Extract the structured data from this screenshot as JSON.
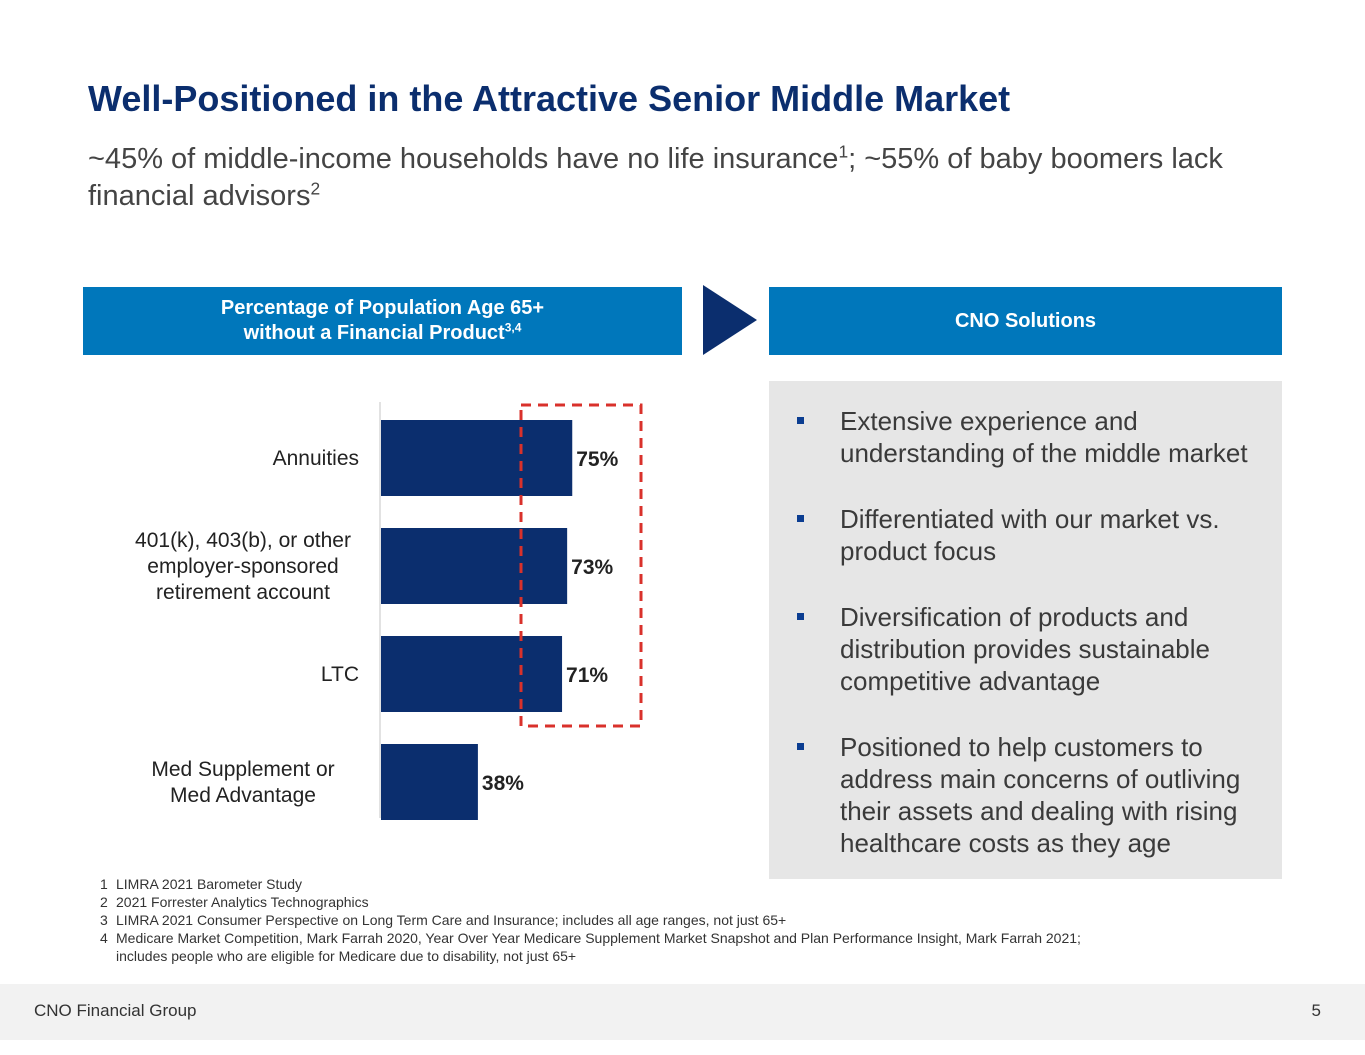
{
  "title": "Well-Positioned in the Attractive Senior Middle Market",
  "subtitle": {
    "part1": "~45% of middle-income households have no life insurance",
    "sup1": "1",
    "part2": "; ~55% of baby boomers lack financial advisors",
    "sup2": "2"
  },
  "left_header": {
    "line1": "Percentage of Population Age 65+",
    "line2": "without a Financial Product",
    "sup": "3,4"
  },
  "right_header": "CNO Solutions",
  "colors": {
    "title": "#0B2E6E",
    "header_bg": "#0077BB",
    "bar": "#0B2E6E",
    "highlight_dash": "#D9312B",
    "panel_bg": "#E6E6E6"
  },
  "chart_data": {
    "type": "bar",
    "orientation": "horizontal",
    "title": "Percentage of Population Age 65+ without a Financial Product",
    "categories": [
      [
        "Annuities"
      ],
      [
        "401(k), 403(b), or other",
        "employer-sponsored",
        "retirement account"
      ],
      [
        "LTC"
      ],
      [
        "Med Supplement or",
        "Med Advantage"
      ]
    ],
    "values": [
      75,
      73,
      71,
      38
    ],
    "value_labels": [
      "75%",
      "73%",
      "71%",
      "38%"
    ],
    "xlim": [
      0,
      100
    ],
    "highlighted": [
      0,
      1,
      2
    ],
    "grid": false
  },
  "solutions": [
    "Extensive experience and understanding of the middle market",
    "Differentiated with our market vs. product focus",
    "Diversification of products and distribution provides sustainable competitive advantage",
    "Positioned to help customers to address main concerns of outliving their assets and dealing with rising healthcare costs as they age"
  ],
  "footnotes": [
    {
      "num": "1",
      "lines": [
        "LIMRA 2021 Barometer Study"
      ]
    },
    {
      "num": "2",
      "lines": [
        "2021 Forrester Analytics Technographics"
      ]
    },
    {
      "num": "3",
      "lines": [
        "LIMRA 2021 Consumer Perspective on Long Term Care and Insurance; includes all age ranges, not just 65+"
      ]
    },
    {
      "num": "4",
      "lines": [
        "Medicare Market Competition, Mark Farrah 2020, Year Over Year Medicare Supplement Market Snapshot and Plan Performance Insight, Mark Farrah 2021;",
        "includes people  who are eligible for Medicare due to disability, not just 65+"
      ]
    }
  ],
  "footer": {
    "company": "CNO Financial Group",
    "page_number": "5"
  }
}
